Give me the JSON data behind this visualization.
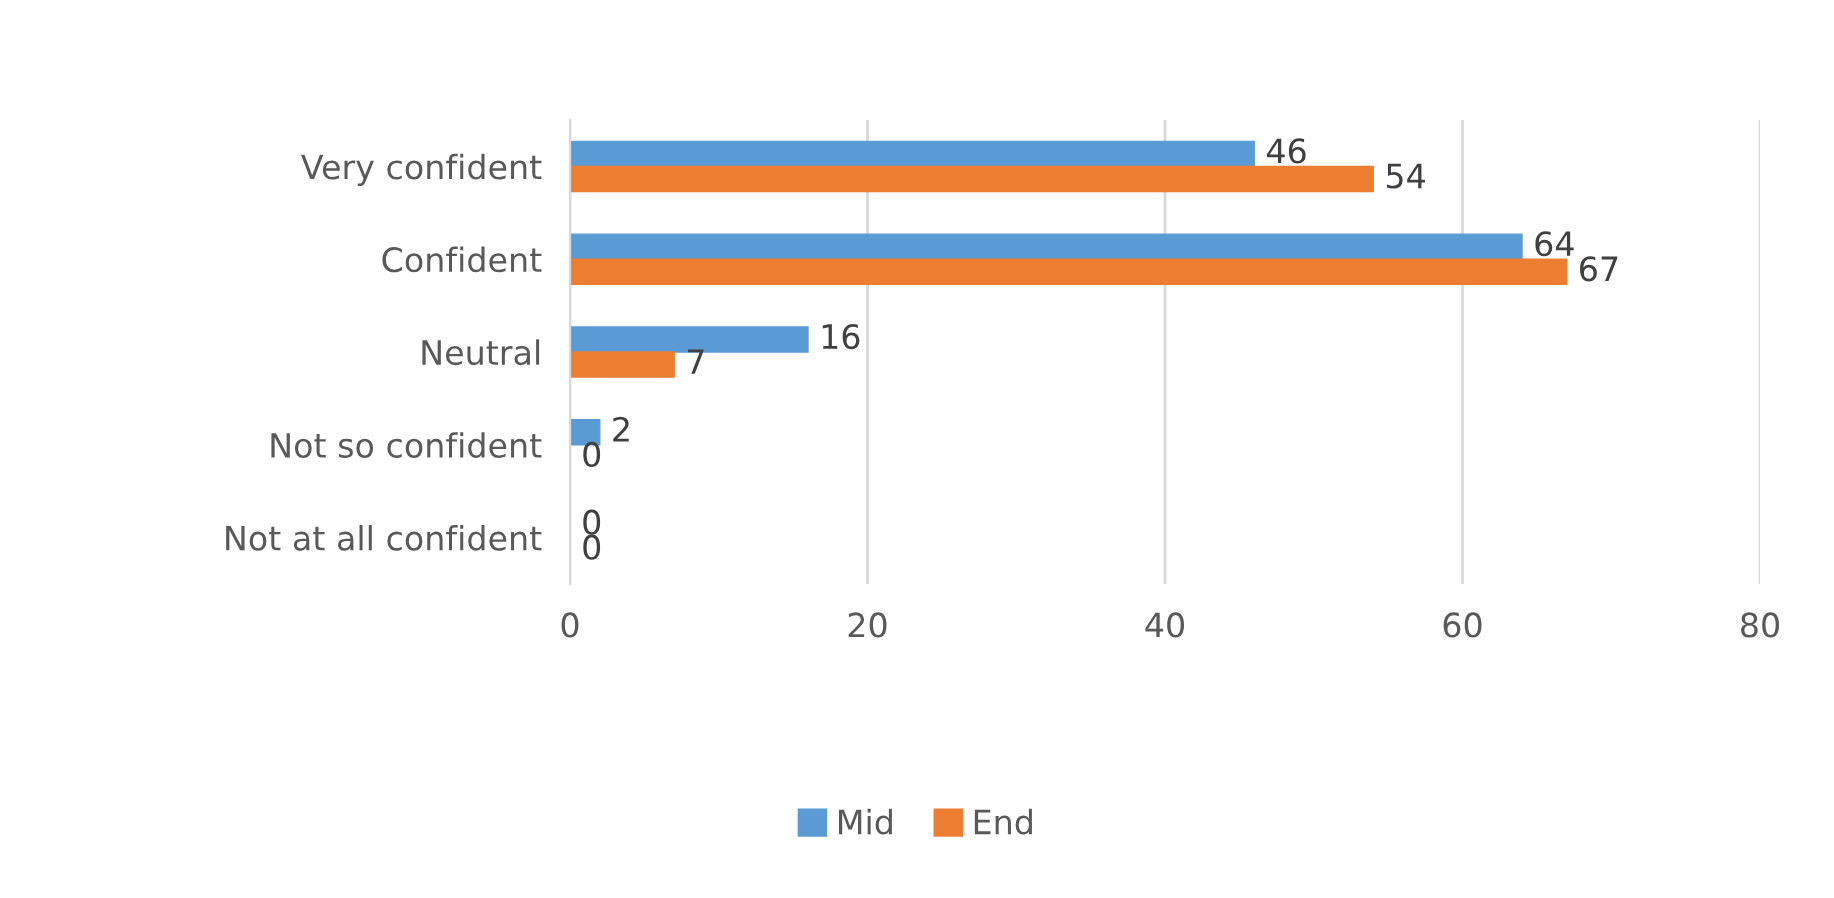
{
  "chart_data": {
    "type": "bar",
    "orientation": "horizontal",
    "categories": [
      "Very confident",
      "Confident",
      "Neutral",
      "Not so confident",
      "Not at all confident"
    ],
    "series": [
      {
        "name": "Mid",
        "color": "#5b9bd5",
        "values": [
          46,
          64,
          16,
          2,
          0
        ]
      },
      {
        "name": "End",
        "color": "#ed7d31",
        "values": [
          54,
          67,
          7,
          0,
          0
        ]
      }
    ],
    "xlim": [
      0,
      80
    ],
    "xticks": [
      0,
      20,
      40,
      60,
      80
    ],
    "grid": "x",
    "legend": "bottom",
    "data_labels": true
  }
}
